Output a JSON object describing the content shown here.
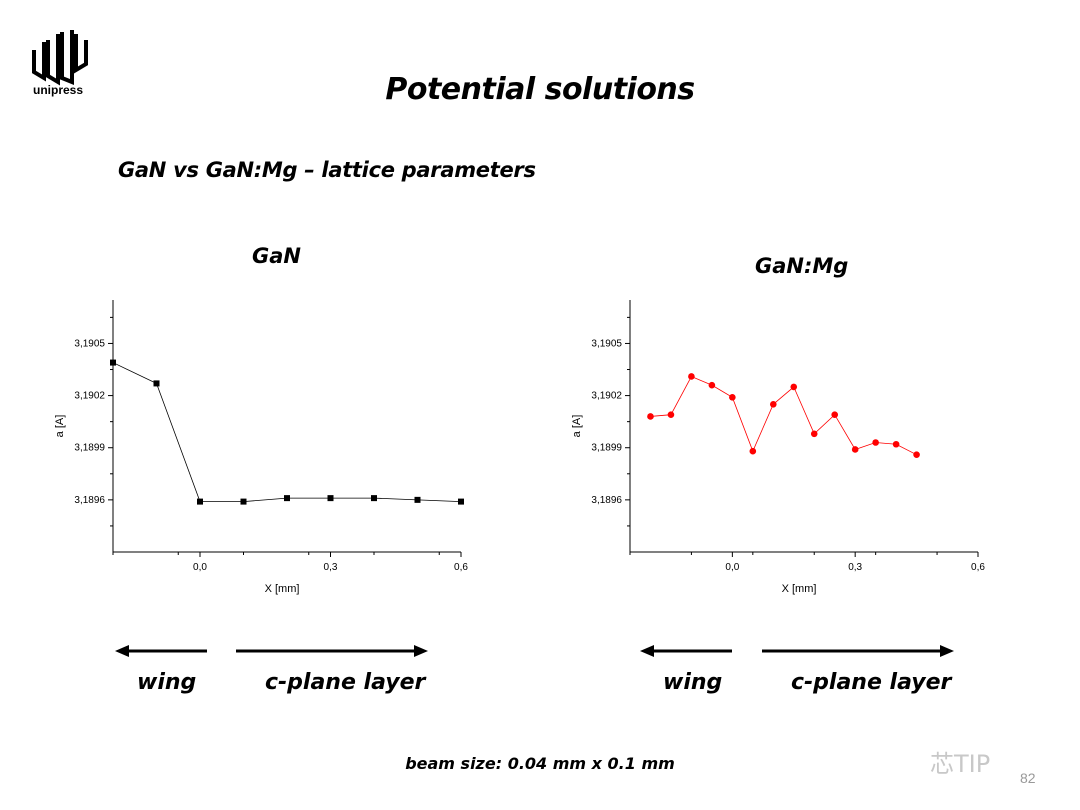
{
  "logo": {
    "text": "unipress"
  },
  "title": "Potential solutions",
  "subtitle": "GaN vs GaN:Mg – lattice parameters",
  "chart_data": [
    {
      "type": "scatter",
      "title": "GaN",
      "xlabel": "X [mm]",
      "ylabel": "a [A]",
      "xlim": [
        -0.2,
        0.6
      ],
      "ylim": [
        3.1893,
        3.19075
      ],
      "xticks": [
        0.0,
        0.3,
        0.6
      ],
      "xtick_labels": [
        "0,0",
        "0,3",
        "0,6"
      ],
      "yticks": [
        3.1896,
        3.1899,
        3.1902,
        3.1905
      ],
      "ytick_labels": [
        "3,1896",
        "3,1899",
        "3,1902",
        "3,1905"
      ],
      "grid": false,
      "series": [
        {
          "color": "#000000",
          "marker": "square",
          "x": [
            -0.2,
            -0.1,
            0.0,
            0.1,
            0.2,
            0.3,
            0.4,
            0.5,
            0.6
          ],
          "y": [
            3.19039,
            3.19027,
            3.18959,
            3.18959,
            3.18961,
            3.18961,
            3.18961,
            3.1896,
            3.18959
          ]
        }
      ]
    },
    {
      "type": "scatter",
      "title": "GaN:Mg",
      "xlabel": "X [mm]",
      "ylabel": "a [A]",
      "xlim": [
        -0.25,
        0.6
      ],
      "ylim": [
        3.1893,
        3.19075
      ],
      "xticks": [
        0.0,
        0.3,
        0.6
      ],
      "xtick_labels": [
        "0,0",
        "0,3",
        "0,6"
      ],
      "yticks": [
        3.1896,
        3.1899,
        3.1902,
        3.1905
      ],
      "ytick_labels": [
        "3,1896",
        "3,1899",
        "3,1902",
        "3,1905"
      ],
      "grid": false,
      "series": [
        {
          "color": "#ff0000",
          "marker": "circle",
          "x": [
            -0.2,
            -0.15,
            -0.1,
            -0.05,
            0.0,
            0.05,
            0.1,
            0.15,
            0.2,
            0.25,
            0.3,
            0.35,
            0.4,
            0.45
          ],
          "y": [
            3.19008,
            3.19009,
            3.19031,
            3.19026,
            3.19019,
            3.18988,
            3.19015,
            3.19025,
            3.18998,
            3.19009,
            3.18989,
            3.18993,
            3.18992,
            3.18986
          ]
        }
      ]
    }
  ],
  "regions": {
    "wing_label": "wing",
    "cplane_label": "c-plane layer"
  },
  "footer": "beam size: 0.04 mm x 0.1 mm",
  "watermark": "芯TIP",
  "page_number": "82"
}
